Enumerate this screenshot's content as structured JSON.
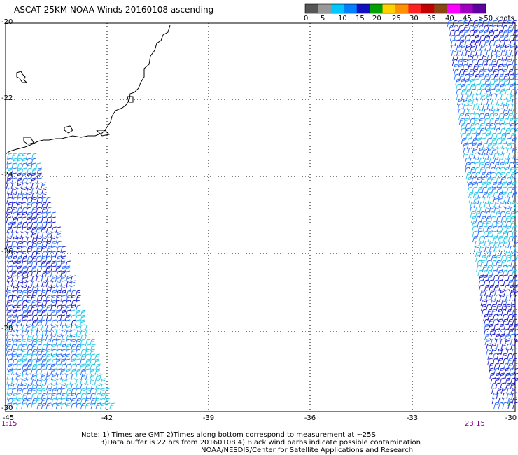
{
  "title": "ASCAT 25KM NOAA Winds 20160108 ascending",
  "legend": {
    "labels": [
      "0",
      "5",
      "10",
      "15",
      "20",
      "25",
      "30",
      "35",
      "40",
      "45",
      ">50 knots"
    ],
    "colors": [
      "#555555",
      "#999999",
      "#00c8ff",
      "#0080ff",
      "#1010c0",
      "#00a000",
      "#ffd000",
      "#ff9000",
      "#ff2020",
      "#c00000",
      "#8b4513",
      "#ff00ff",
      "#a000c0",
      "#6000a0"
    ]
  },
  "axes": {
    "lon_labels": [
      "-45",
      "-42",
      "-39",
      "-36",
      "-33",
      "-30"
    ],
    "lat_labels": [
      "-20",
      "-22",
      "-24",
      "-26",
      "-28",
      "-30"
    ],
    "lon_range": [
      -45,
      -30
    ],
    "lat_range": [
      -20,
      -30
    ],
    "grid": "dotted"
  },
  "times": {
    "left": "1:15",
    "right": "23:15"
  },
  "notes": {
    "line1": "Note: 1) Times are GMT 2)Times along bottom correspond to measurement at ~25S",
    "line2": "3)Data buffer is 22 hrs from 20160108 4) Black wind barbs indicate possible contamination",
    "line3": "NOAA/NESDIS/Center for Satellite Applications and Research"
  },
  "colors": {
    "barb_dark": "#1a1ad0",
    "barb_blue": "#2a6bff",
    "barb_cyan": "#20c8e8",
    "barb_green": "#30c030",
    "coast": "#000000",
    "time_text": "#800080"
  }
}
